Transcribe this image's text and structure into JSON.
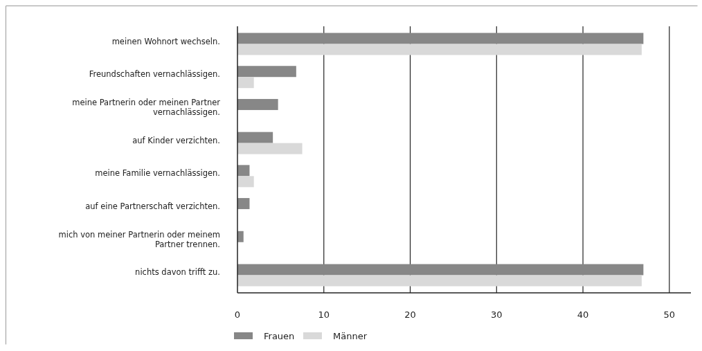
{
  "chart_data": {
    "type": "bar",
    "orientation": "horizontal",
    "categories": [
      "meinen Wohnort wechseln.",
      "Freundschaften vernachlässigen.",
      "meine Partnerin oder meinen Partner vernachlässigen.",
      "auf Kinder verzichten.",
      "meine Familie vernachlässigen.",
      "auf eine Partnerschaft verzichten.",
      "mich von meiner Partnerin oder meinem Partner trennen.",
      "nichts davon trifft zu."
    ],
    "series": [
      {
        "name": "Frauen",
        "color": "#878787",
        "values": [
          47.0,
          6.8,
          4.7,
          4.1,
          1.4,
          1.4,
          0.7,
          47.0
        ]
      },
      {
        "name": "Männer",
        "color": "#d9d9d9",
        "values": [
          46.8,
          1.9,
          null,
          7.5,
          1.9,
          null,
          null,
          46.8
        ]
      }
    ],
    "xlim": [
      0,
      52.5
    ],
    "xticks": [
      0,
      10,
      20,
      30,
      40,
      50
    ],
    "grid": "x",
    "legend": "bottom"
  }
}
